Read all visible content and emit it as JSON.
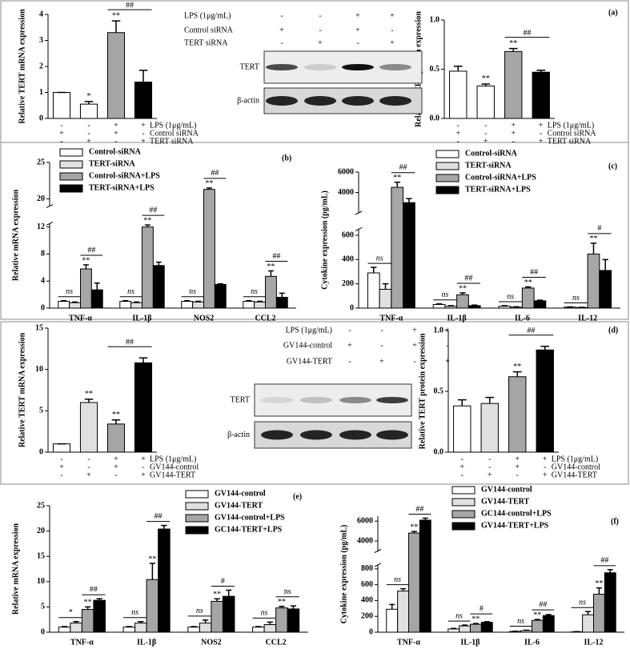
{
  "panel_labels": [
    "(a)",
    "(b)",
    "(c)",
    "(d)",
    "(e)",
    "(f)"
  ],
  "conditions_a": [
    {
      "label": "LPS (1μg/mL)",
      "signs": [
        "-",
        "-",
        "+",
        "+"
      ]
    },
    {
      "label": "Control siRNA",
      "signs": [
        "+",
        "-",
        "+",
        "-"
      ]
    },
    {
      "label": "TERT siRNA",
      "signs": [
        "-",
        "+",
        "-",
        "+"
      ]
    }
  ],
  "conditions_d": [
    {
      "label": "LPS (1μg/mL)",
      "signs": [
        "-",
        "-",
        "+",
        "+"
      ]
    },
    {
      "label": "GV144-control",
      "signs": [
        "+",
        "-",
        "+",
        "-"
      ]
    },
    {
      "label": "GV144-TERT",
      "signs": [
        "-",
        "+",
        "-",
        "+"
      ]
    }
  ],
  "blots": [
    {
      "bands": [
        "TERT",
        "β-actin"
      ]
    },
    {
      "bands": [
        "TERT",
        "β-actin"
      ]
    }
  ],
  "chart_data": [
    {
      "type": "bar",
      "y_label": "Relative TERT mRNA expression",
      "values": [
        1,
        0.55,
        3.3,
        1.4
      ],
      "errors": [
        0,
        0.1,
        0.45,
        0.45
      ],
      "colors": [
        "#ffffff",
        "#ffffff",
        "#a6a6a6",
        "#000000"
      ],
      "ylim": [
        0,
        4
      ],
      "yticks": [
        0,
        1,
        2,
        3,
        4
      ],
      "stars": [
        null,
        "*",
        "**",
        null
      ],
      "bracket": "##"
    },
    {
      "type": "bar",
      "y_label": "Relative TERT protein expression",
      "values": [
        0.48,
        0.33,
        0.68,
        0.47
      ],
      "errors": [
        0.05,
        0.02,
        0.03,
        0.02
      ],
      "colors": [
        "#ffffff",
        "#ffffff",
        "#a6a6a6",
        "#000000"
      ],
      "ylim": [
        0,
        1
      ],
      "yticks": [
        {
          "value": 0,
          "label": "0.0"
        },
        0.5,
        {
          "value": 1,
          "label": "1.0"
        }
      ],
      "stars": [
        null,
        "**",
        "**",
        null
      ],
      "bracket": "##"
    },
    {
      "type": "grouped_bar",
      "y_label": "Relative mRNA expression",
      "categories": [
        "TNF-α",
        "IL-1β",
        "NOS2",
        "CCL2"
      ],
      "series": [
        {
          "name": "Control-siRNA",
          "color": "#ffffff",
          "values": [
            1,
            1,
            1,
            1
          ],
          "errors": [
            0.1,
            0.1,
            0.1,
            0.1
          ]
        },
        {
          "name": "TERT-siRNA",
          "color": "#e0e0e0",
          "values": [
            0.8,
            0.8,
            0.9,
            0.9
          ],
          "errors": [
            0.1,
            0.1,
            0.1,
            0.1
          ]
        },
        {
          "name": "Control-siRNA+LPS",
          "color": "#a6a6a6",
          "values": [
            5.8,
            12,
            21.3,
            4.7
          ],
          "errors": [
            0.6,
            0.3,
            0.2,
            0.8
          ]
        },
        {
          "name": "TERT-siRNA+LPS",
          "color": "#000000",
          "values": [
            2.7,
            6.3,
            3.5,
            1.6
          ],
          "errors": [
            1,
            0.5,
            0.1,
            0.6
          ]
        }
      ],
      "ylim": [
        0,
        25
      ],
      "ybreak": [
        12.5,
        19
      ],
      "yticks": [
        0,
        4,
        8,
        12,
        20,
        25
      ],
      "low_labels": [
        "ns",
        "ns",
        "ns",
        "ns"
      ],
      "stars": [
        "**",
        "**",
        "**",
        "**"
      ],
      "high_labels": [
        "##",
        "##",
        "##",
        "##"
      ]
    },
    {
      "type": "grouped_bar",
      "y_label": "Cytokine expression (pg/mL)",
      "categories": [
        "TNF-α",
        "IL-1β",
        "IL-6",
        "IL-12"
      ],
      "series": [
        {
          "name": "Control-siRNA",
          "color": "#ffffff",
          "values": [
            290,
            30,
            15,
            8
          ],
          "errors": [
            45,
            5,
            5,
            2
          ]
        },
        {
          "name": "TERT-siRNA",
          "color": "#e0e0e0",
          "values": [
            155,
            15,
            8,
            5
          ],
          "errors": [
            45,
            5,
            3,
            2
          ]
        },
        {
          "name": "Control-siRNA+LPS",
          "color": "#a6a6a6",
          "values": [
            4500,
            110,
            165,
            445
          ],
          "errors": [
            500,
            15,
            10,
            90
          ]
        },
        {
          "name": "TERT-siRNA+LPS",
          "color": "#000000",
          "values": [
            3000,
            20,
            60,
            310
          ],
          "errors": [
            400,
            5,
            5,
            90
          ]
        }
      ],
      "ylim": [
        0,
        6000
      ],
      "ybreak": [
        650,
        2000
      ],
      "yticks": [
        0,
        200,
        400,
        600,
        4000,
        6000
      ],
      "low_labels": [
        "ns",
        "ns",
        "ns",
        "ns"
      ],
      "stars": [
        "**",
        "**",
        "**",
        "**"
      ],
      "high_labels": [
        "##",
        "##",
        "##",
        "#"
      ]
    },
    {
      "type": "bar",
      "y_label": "Relative TERT mRNA expression",
      "values": [
        1,
        6,
        3.4,
        10.8
      ],
      "errors": [
        0,
        0.4,
        0.5,
        0.6
      ],
      "colors": [
        "#ffffff",
        "#e0e0e0",
        "#a6a6a6",
        "#000000"
      ],
      "ylim": [
        0,
        15
      ],
      "yticks": [
        0,
        5,
        10,
        15
      ],
      "stars": [
        null,
        "**",
        "**",
        null
      ],
      "bracket": "##"
    },
    {
      "type": "bar",
      "y_label": "Relative TERT protein expression",
      "values": [
        0.38,
        0.4,
        0.62,
        0.84
      ],
      "errors": [
        0.05,
        0.05,
        0.04,
        0.03
      ],
      "colors": [
        "#ffffff",
        "#e0e0e0",
        "#a6a6a6",
        "#000000"
      ],
      "ylim": [
        0,
        1
      ],
      "yticks": [
        {
          "value": 0,
          "label": "0.0"
        },
        0.5,
        {
          "value": 1,
          "label": "1.0"
        }
      ],
      "stars": [
        null,
        null,
        "**",
        null
      ],
      "bracket": "##"
    },
    {
      "type": "grouped_bar",
      "y_label": "Relative mRNA expression",
      "categories": [
        "TNF-α",
        "IL-1β",
        "NOS2",
        "CCL2"
      ],
      "series": [
        {
          "name": "GV144-control",
          "color": "#ffffff",
          "values": [
            1,
            1,
            1,
            1
          ],
          "errors": [
            0.1,
            0.1,
            0.1,
            0.1
          ]
        },
        {
          "name": "GV144-TERT",
          "color": "#e0e0e0",
          "values": [
            1.8,
            1.8,
            1.8,
            1.5
          ],
          "errors": [
            0.3,
            0.3,
            0.6,
            0.5
          ]
        },
        {
          "name": "GV144-control+LPS",
          "color": "#a6a6a6",
          "values": [
            4.5,
            10.4,
            6.1,
            4.8
          ],
          "errors": [
            0.5,
            3.2,
            0.5,
            0.3
          ]
        },
        {
          "name": "GC144-TERT+LPS",
          "color": "#000000",
          "values": [
            6.3,
            20.4,
            7.1,
            4.6
          ],
          "errors": [
            0.3,
            0.7,
            1.2,
            0.6
          ]
        }
      ],
      "ylim": [
        0,
        25
      ],
      "yticks": [
        0,
        5,
        10,
        15,
        20,
        25
      ],
      "low_labels": [
        "*",
        "ns",
        "ns",
        "ns"
      ],
      "stars": [
        "**",
        "**",
        "**",
        "**"
      ],
      "high_labels": [
        "##",
        "##",
        "#",
        "ns"
      ]
    },
    {
      "type": "grouped_bar",
      "y_label": "Cytokine expression (pg/mL)",
      "categories": [
        "TNF-α",
        "IL-1β",
        "IL-6",
        "IL-12"
      ],
      "series": [
        {
          "name": "GV144-control",
          "color": "#ffffff",
          "values": [
            290,
            40,
            10,
            5
          ],
          "errors": [
            60,
            8,
            3,
            2
          ]
        },
        {
          "name": "GV144-TERT",
          "color": "#e0e0e0",
          "values": [
            520,
            80,
            20,
            220
          ],
          "errors": [
            30,
            10,
            5,
            40
          ]
        },
        {
          "name": "GC144-control+LPS",
          "color": "#a6a6a6",
          "values": [
            4800,
            100,
            150,
            480
          ],
          "errors": [
            150,
            10,
            10,
            80
          ]
        },
        {
          "name": "GV144-TERT+LPS",
          "color": "#000000",
          "values": [
            6100,
            125,
            210,
            750
          ],
          "errors": [
            200,
            8,
            12,
            40
          ]
        }
      ],
      "ylim": [
        0,
        6500
      ],
      "ybreak": [
        850,
        3000
      ],
      "yticks": [
        0,
        200,
        400,
        600,
        800,
        4000,
        6000
      ],
      "low_labels": [
        "ns",
        "ns",
        "ns",
        "ns"
      ],
      "stars": [
        "**",
        "**",
        "**",
        "**"
      ],
      "high_labels": [
        "##",
        "#",
        "##",
        "##"
      ]
    }
  ]
}
